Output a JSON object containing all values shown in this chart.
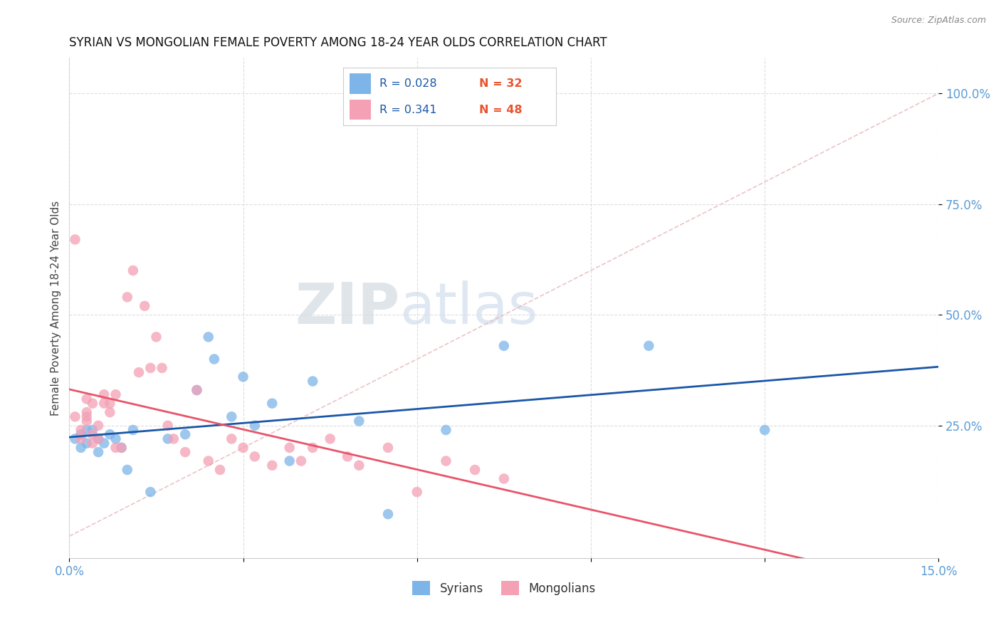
{
  "title": "SYRIAN VS MONGOLIAN FEMALE POVERTY AMONG 18-24 YEAR OLDS CORRELATION CHART",
  "source": "Source: ZipAtlas.com",
  "ylabel": "Female Poverty Among 18-24 Year Olds",
  "xlim": [
    0.0,
    0.15
  ],
  "ylim": [
    -0.05,
    1.08
  ],
  "xticks": [
    0.0,
    0.03,
    0.06,
    0.09,
    0.12,
    0.15
  ],
  "xtick_labels": [
    "0.0%",
    "",
    "",
    "",
    "",
    "15.0%"
  ],
  "yticks": [
    0.25,
    0.5,
    0.75,
    1.0
  ],
  "ytick_labels": [
    "25.0%",
    "50.0%",
    "75.0%",
    "100.0%"
  ],
  "legend_r_syrian": "R = 0.028",
  "legend_n_syrian": "N = 32",
  "legend_r_mongolian": "R = 0.341",
  "legend_n_mongolian": "N = 48",
  "syrian_color": "#7eb5e8",
  "mongolian_color": "#f4a0b5",
  "syrian_line_color": "#1a57a8",
  "mongolian_line_color": "#e8546a",
  "diagonal_color": "#e8b4b8",
  "watermark_zip": "ZIP",
  "watermark_atlas": "atlas",
  "background_color": "#ffffff",
  "grid_color": "#dddddd",
  "syrians_x": [
    0.001,
    0.002,
    0.002,
    0.003,
    0.003,
    0.004,
    0.005,
    0.005,
    0.006,
    0.007,
    0.008,
    0.009,
    0.01,
    0.011,
    0.014,
    0.017,
    0.02,
    0.022,
    0.024,
    0.025,
    0.028,
    0.03,
    0.032,
    0.035,
    0.038,
    0.042,
    0.05,
    0.055,
    0.065,
    0.075,
    0.1,
    0.12
  ],
  "syrians_y": [
    0.22,
    0.23,
    0.2,
    0.24,
    0.21,
    0.24,
    0.19,
    0.22,
    0.21,
    0.23,
    0.22,
    0.2,
    0.15,
    0.24,
    0.1,
    0.22,
    0.23,
    0.33,
    0.45,
    0.4,
    0.27,
    0.36,
    0.25,
    0.3,
    0.17,
    0.35,
    0.26,
    0.05,
    0.24,
    0.43,
    0.43,
    0.24
  ],
  "mongolians_x": [
    0.001,
    0.001,
    0.002,
    0.002,
    0.003,
    0.003,
    0.003,
    0.003,
    0.004,
    0.004,
    0.004,
    0.005,
    0.005,
    0.006,
    0.006,
    0.007,
    0.007,
    0.008,
    0.008,
    0.009,
    0.01,
    0.011,
    0.012,
    0.013,
    0.014,
    0.015,
    0.016,
    0.017,
    0.018,
    0.02,
    0.022,
    0.024,
    0.026,
    0.028,
    0.03,
    0.032,
    0.035,
    0.038,
    0.04,
    0.042,
    0.045,
    0.048,
    0.05,
    0.055,
    0.06,
    0.065,
    0.07,
    0.075
  ],
  "mongolians_y": [
    0.27,
    0.67,
    0.24,
    0.22,
    0.26,
    0.27,
    0.28,
    0.31,
    0.21,
    0.23,
    0.3,
    0.25,
    0.22,
    0.3,
    0.32,
    0.3,
    0.28,
    0.32,
    0.2,
    0.2,
    0.54,
    0.6,
    0.37,
    0.52,
    0.38,
    0.45,
    0.38,
    0.25,
    0.22,
    0.19,
    0.33,
    0.17,
    0.15,
    0.22,
    0.2,
    0.18,
    0.16,
    0.2,
    0.17,
    0.2,
    0.22,
    0.18,
    0.16,
    0.2,
    0.1,
    0.17,
    0.15,
    0.13
  ]
}
